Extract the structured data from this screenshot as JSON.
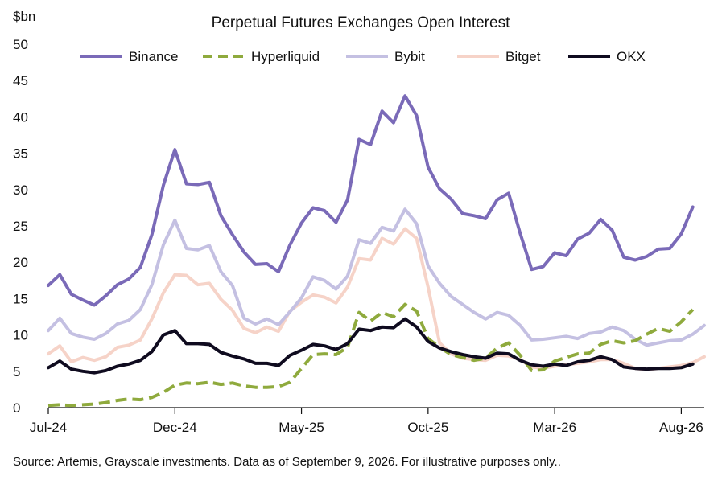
{
  "footer": {
    "source": "Source: Artemis, Grayscale investments. Data as of September 9, 2026. For illustrative purposes only.."
  },
  "chart_data": {
    "type": "line",
    "title": "Perpetual Futures Exchanges Open Interest",
    "ylabel": "$bn",
    "xlabel": "",
    "ylim": [
      0,
      50
    ],
    "yticks": [
      0,
      5,
      10,
      15,
      20,
      25,
      30,
      35,
      40,
      45,
      50
    ],
    "xticks": [
      "Jul-24",
      "Dec-24",
      "May-25",
      "Oct-25",
      "Mar-26",
      "Aug-26"
    ],
    "xtick_index": [
      0,
      11,
      22,
      33,
      44,
      55
    ],
    "point_count": 58,
    "grid": false,
    "legend_position": "top",
    "series": [
      {
        "name": "Binance",
        "color": "#7a6ab8",
        "dash": "solid",
        "values": [
          16.8,
          18.3,
          15.6,
          14.8,
          14.1,
          15.4,
          16.9,
          17.7,
          19.3,
          23.8,
          30.6,
          35.5,
          30.8,
          30.7,
          31.0,
          26.4,
          23.8,
          21.4,
          19.7,
          19.8,
          18.7,
          22.4,
          25.4,
          27.5,
          27.1,
          25.5,
          28.6,
          36.9,
          36.2,
          40.8,
          39.2,
          42.9,
          40.2,
          33.1,
          30.1,
          28.7,
          26.7,
          26.4,
          26.0,
          28.6,
          29.5,
          24.0,
          19.0,
          19.4,
          21.3,
          20.9,
          23.2,
          24.0,
          25.9,
          24.4,
          20.7,
          20.3,
          20.8,
          21.8,
          21.9,
          23.9,
          27.6,
          null
        ]
      },
      {
        "name": "Hyperliquid",
        "color": "#8faa3d",
        "dash": "dashed",
        "values": [
          0.3,
          0.4,
          0.3,
          0.4,
          0.5,
          0.7,
          1.0,
          1.2,
          1.1,
          1.4,
          2.1,
          3.1,
          3.4,
          3.3,
          3.5,
          3.2,
          3.4,
          3.0,
          2.8,
          2.8,
          2.9,
          3.5,
          5.4,
          7.3,
          7.4,
          7.3,
          8.3,
          13.1,
          11.9,
          13.1,
          12.5,
          14.2,
          13.3,
          9.5,
          8.3,
          7.3,
          6.9,
          6.5,
          6.8,
          8.2,
          8.9,
          7.2,
          5.1,
          5.2,
          6.4,
          6.9,
          7.4,
          7.5,
          8.7,
          9.2,
          8.9,
          9.2,
          10.1,
          10.9,
          10.5,
          11.8,
          13.5,
          null
        ]
      },
      {
        "name": "Bybit",
        "color": "#c4c0e2",
        "dash": "solid",
        "values": [
          10.6,
          12.3,
          10.2,
          9.7,
          9.4,
          10.2,
          11.5,
          12.0,
          13.5,
          16.9,
          22.4,
          25.8,
          21.9,
          21.7,
          22.3,
          18.7,
          16.8,
          12.3,
          11.5,
          12.2,
          11.4,
          13.2,
          15.1,
          18.0,
          17.5,
          16.3,
          18.1,
          23.1,
          22.6,
          24.8,
          24.3,
          27.3,
          25.3,
          19.5,
          17.1,
          15.3,
          14.2,
          13.1,
          12.2,
          13.1,
          12.7,
          11.3,
          9.3,
          9.4,
          9.6,
          9.8,
          9.5,
          10.2,
          10.4,
          11.1,
          10.6,
          9.4,
          8.6,
          8.9,
          9.2,
          9.3,
          10.1,
          11.3
        ]
      },
      {
        "name": "Bitget",
        "color": "#f6d3c8",
        "dash": "solid",
        "values": [
          7.4,
          8.5,
          6.3,
          6.9,
          6.5,
          7.0,
          8.3,
          8.6,
          9.3,
          12.2,
          15.8,
          18.3,
          18.2,
          16.9,
          17.1,
          14.9,
          13.4,
          10.9,
          10.3,
          11.1,
          10.5,
          13.3,
          14.5,
          15.5,
          15.2,
          14.4,
          16.6,
          20.5,
          20.3,
          23.3,
          22.5,
          24.6,
          23.3,
          16.6,
          8.9,
          7.4,
          6.8,
          6.6,
          6.5,
          7.2,
          7.1,
          6.6,
          5.6,
          5.4,
          5.7,
          5.9,
          6.1,
          6.3,
          6.6,
          6.6,
          6.1,
          5.4,
          5.2,
          5.4,
          5.6,
          5.8,
          6.2,
          7.0
        ]
      },
      {
        "name": "OKX",
        "color": "#0f0b1f",
        "dash": "solid",
        "values": [
          5.5,
          6.4,
          5.3,
          5.0,
          4.8,
          5.1,
          5.7,
          6.0,
          6.5,
          7.7,
          10.0,
          10.6,
          8.8,
          8.8,
          8.7,
          7.6,
          7.1,
          6.7,
          6.1,
          6.1,
          5.8,
          7.2,
          7.9,
          8.7,
          8.5,
          8.0,
          8.8,
          10.8,
          10.6,
          11.1,
          11.0,
          12.2,
          11.1,
          9.1,
          8.2,
          7.7,
          7.3,
          7.0,
          6.8,
          7.5,
          7.4,
          6.5,
          5.9,
          5.7,
          6.0,
          5.8,
          6.3,
          6.5,
          7.0,
          6.6,
          5.6,
          5.4,
          5.3,
          5.4,
          5.4,
          5.5,
          6.0,
          null
        ]
      }
    ]
  }
}
